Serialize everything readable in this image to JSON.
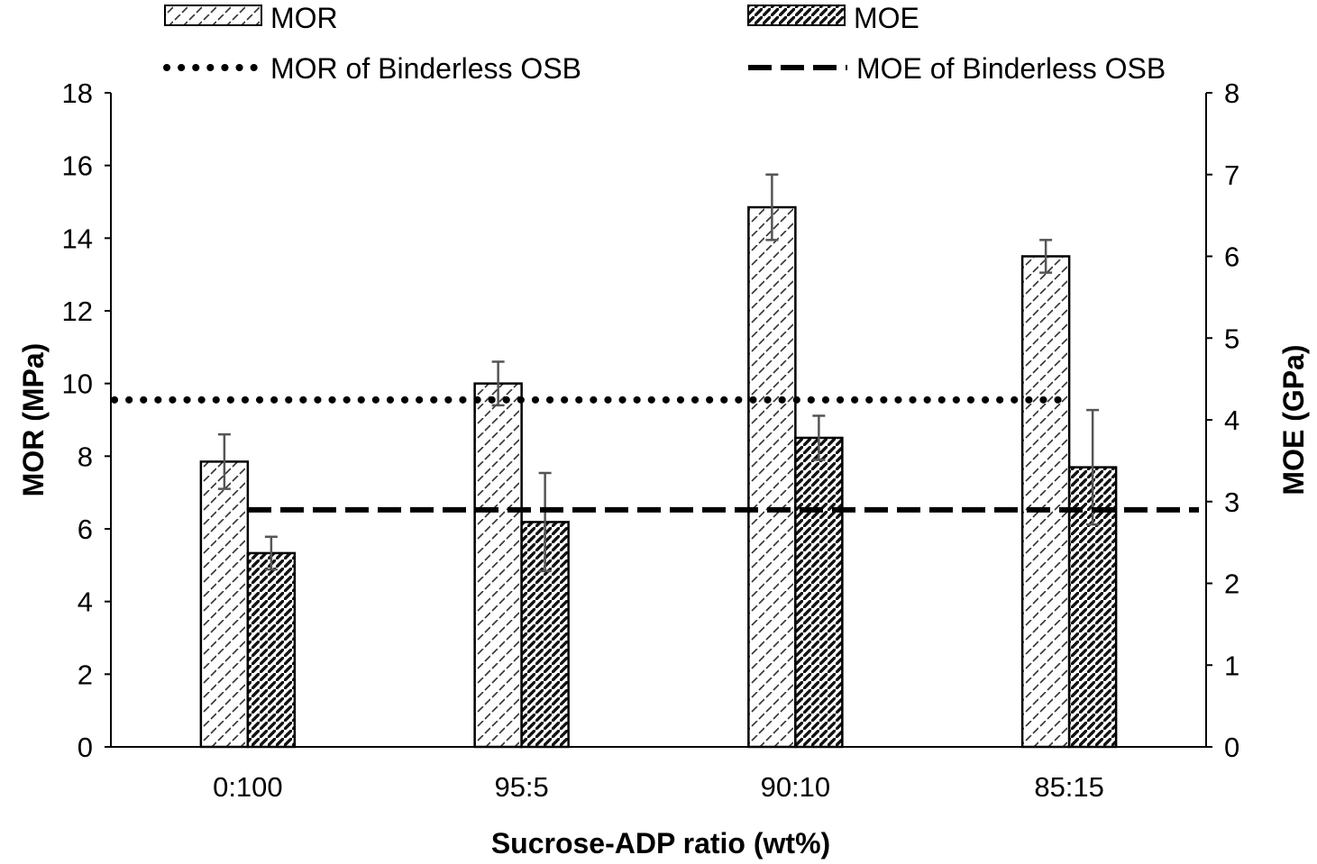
{
  "chart_data": {
    "type": "bar",
    "title": "",
    "categories": [
      "0:100",
      "95:5",
      "90:10",
      "85:15"
    ],
    "xlabel": "Sucrose-ADP ratio (wt%)",
    "ylabel": "MOR (MPa)",
    "y2label": "MOE (GPa)",
    "ylim": [
      0,
      18
    ],
    "y2lim": [
      0,
      8
    ],
    "yticks": [
      0,
      2,
      4,
      6,
      8,
      10,
      12,
      14,
      16,
      18
    ],
    "y2ticks": [
      0,
      1,
      2,
      3,
      4,
      5,
      6,
      7,
      8
    ],
    "series": [
      {
        "name": "MOR",
        "axis": "left",
        "pattern": "light-hatch",
        "values": [
          7.85,
          10.0,
          14.85,
          13.5
        ],
        "errors": [
          0.75,
          0.6,
          0.9,
          0.45
        ]
      },
      {
        "name": "MOE",
        "axis": "right",
        "pattern": "dense-hatch",
        "values": [
          2.37,
          2.75,
          3.78,
          3.42
        ],
        "errors": [
          0.2,
          0.6,
          0.27,
          0.7
        ]
      }
    ],
    "reference_lines": [
      {
        "name": "MOR of Binderless OSB",
        "axis": "left",
        "value": 9.55,
        "style": "dotted"
      },
      {
        "name": "MOE of Binderless OSB",
        "axis": "right",
        "value": 2.9,
        "style": "dashed"
      }
    ],
    "legend": {
      "position": "top",
      "items": [
        "MOR",
        "MOE",
        "MOR of Binderless OSB",
        "MOE of Binderless OSB"
      ]
    }
  }
}
